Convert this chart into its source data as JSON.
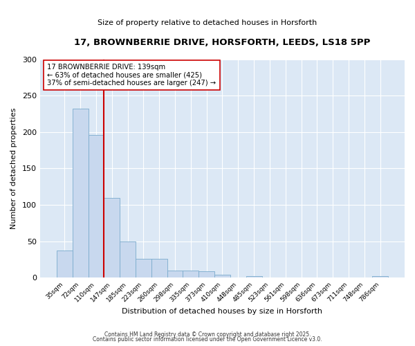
{
  "title_line1": "17, BROWNBERRIE DRIVE, HORSFORTH, LEEDS, LS18 5PP",
  "title_line2": "Size of property relative to detached houses in Horsforth",
  "xlabel": "Distribution of detached houses by size in Horsforth",
  "ylabel": "Number of detached properties",
  "bar_labels": [
    "35sqm",
    "72sqm",
    "110sqm",
    "147sqm",
    "185sqm",
    "223sqm",
    "260sqm",
    "298sqm",
    "335sqm",
    "373sqm",
    "410sqm",
    "448sqm",
    "485sqm",
    "523sqm",
    "561sqm",
    "598sqm",
    "636sqm",
    "673sqm",
    "711sqm",
    "748sqm",
    "786sqm"
  ],
  "bar_values": [
    37,
    232,
    196,
    110,
    50,
    26,
    26,
    10,
    10,
    9,
    4,
    0,
    2,
    0,
    0,
    0,
    0,
    0,
    0,
    0,
    2
  ],
  "bar_color": "#c8d8ee",
  "bar_edge_color": "#7aabcc",
  "vline_x": 2.5,
  "vline_color": "#cc0000",
  "annotation_text": "17 BROWNBERRIE DRIVE: 139sqm\n← 63% of detached houses are smaller (425)\n37% of semi-detached houses are larger (247) →",
  "annotation_box_color": "#ffffff",
  "annotation_box_edge_color": "#cc0000",
  "ylim": [
    0,
    300
  ],
  "yticks": [
    0,
    50,
    100,
    150,
    200,
    250,
    300
  ],
  "axes_bg_color": "#dce8f5",
  "fig_bg_color": "#ffffff",
  "grid_color": "#ffffff",
  "footer_line1": "Contains HM Land Registry data © Crown copyright and database right 2025.",
  "footer_line2": "Contains public sector information licensed under the Open Government Licence v3.0."
}
